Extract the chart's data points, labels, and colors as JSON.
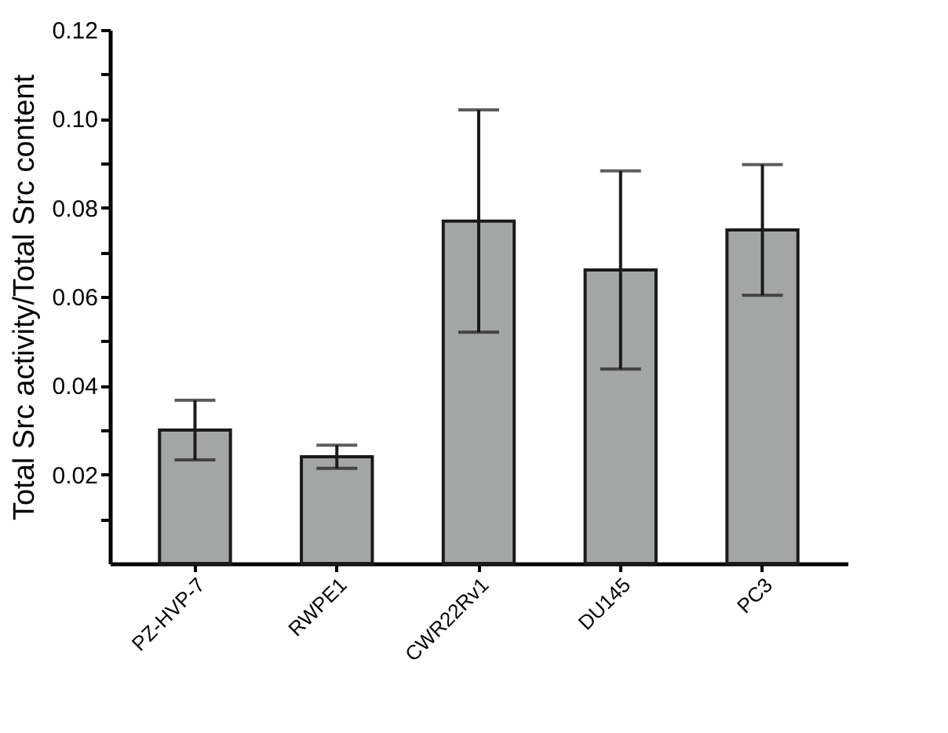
{
  "chart_data": {
    "type": "bar",
    "ylabel": "Total Src activity/Total Src content",
    "categories": [
      "PZ-HVP-7",
      "RWPE1",
      "CWR22Rv1",
      "DU145",
      "PC3"
    ],
    "values": [
      0.03,
      0.024,
      0.077,
      0.066,
      0.075
    ],
    "errors": [
      0.0067,
      0.0026,
      0.025,
      0.0223,
      0.0147
    ],
    "color": "#a4a6a5",
    "ylim": [
      0,
      0.12
    ],
    "yticks": [
      {
        "value": 0.01,
        "label": null
      },
      0.02,
      {
        "value": 0.03,
        "label": null
      },
      0.04,
      {
        "value": 0.05,
        "label": null
      },
      0.06,
      {
        "value": 0.07,
        "label": null
      },
      0.08,
      {
        "value": 0.09,
        "label": null
      },
      {
        "value": 0.1,
        "label": "0.10"
      },
      {
        "value": 0.11,
        "label": null
      },
      0.12
    ],
    "grid": false
  }
}
